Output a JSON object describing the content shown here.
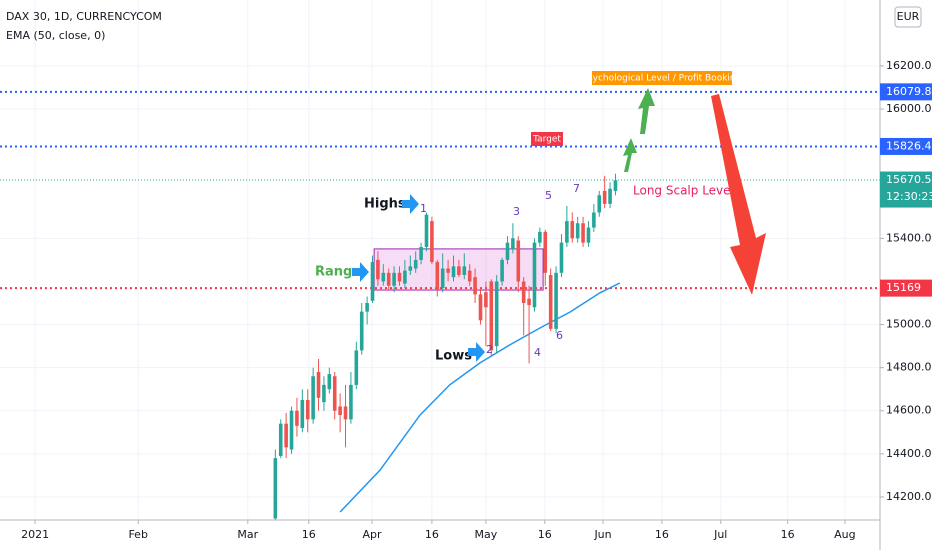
{
  "chart_data": {
    "type": "candlestick",
    "title": "DAX 30, 1D, CURRENCYCOM",
    "indicator": "EMA (50, close, 0)",
    "currency": "EUR",
    "countdown": "12:30:23",
    "ylim": [
      14093,
      16506
    ],
    "yticks": [
      {
        "value": 14200,
        "label": "14200.0"
      },
      {
        "value": 14400,
        "label": "14400.0"
      },
      {
        "value": 14600,
        "label": "14600.0"
      },
      {
        "value": 14800,
        "label": "14800.0"
      },
      {
        "value": 15000,
        "label": "15000.0"
      },
      {
        "value": 15400,
        "label": "15400.0"
      },
      {
        "value": 16000,
        "label": "16000.0"
      },
      {
        "value": 16200,
        "label": "16200.0"
      }
    ],
    "xlim": [
      0,
      163
    ],
    "xticks": [
      {
        "value": 6.5,
        "label": "2021"
      },
      {
        "value": 25.6,
        "label": "Feb"
      },
      {
        "value": 45.9,
        "label": "Mar"
      },
      {
        "value": 57.2,
        "label": "16"
      },
      {
        "value": 68.9,
        "label": "Apr"
      },
      {
        "value": 80,
        "label": "16"
      },
      {
        "value": 90,
        "label": "May"
      },
      {
        "value": 100.9,
        "label": "16"
      },
      {
        "value": 111.7,
        "label": "Jun"
      },
      {
        "value": 122.6,
        "label": "16"
      },
      {
        "value": 133.5,
        "label": "Jul"
      },
      {
        "value": 145.9,
        "label": "16"
      },
      {
        "value": 156.5,
        "label": "Aug"
      }
    ],
    "up_color": "#26a69a",
    "down_color": "#ef5350",
    "candles": {
      "x": [
        51,
        52,
        53,
        54,
        55,
        56,
        57,
        58,
        59,
        60,
        61,
        62,
        63,
        64,
        65,
        66,
        67,
        68,
        69,
        70,
        71,
        72,
        73,
        74,
        75,
        76,
        77,
        78,
        79,
        80,
        81,
        82,
        83,
        84,
        85,
        86,
        87,
        88,
        89,
        90,
        91,
        92,
        93,
        94,
        95,
        96,
        97,
        98,
        99,
        100,
        101,
        102,
        103,
        104,
        105,
        106,
        107,
        108,
        109,
        110,
        111,
        112,
        113,
        114
      ],
      "open": [
        14100,
        14390,
        14540,
        14420,
        14600,
        14520,
        14650,
        14560,
        14780,
        14640,
        14700,
        14760,
        14620,
        14620,
        14560,
        14720,
        14880,
        15060,
        15110,
        15300,
        15200,
        15240,
        15180,
        15240,
        15190,
        15250,
        15260,
        15300,
        15360,
        15480,
        15290,
        15170,
        15260,
        15220,
        15270,
        15230,
        15250,
        15220,
        15140,
        15150,
        15200,
        14900,
        15200,
        15300,
        15350,
        15390,
        15200,
        15120,
        15080,
        15380,
        15430,
        15230,
        14980,
        15240,
        15380,
        15480,
        15400,
        15470,
        15380,
        15450,
        15520,
        15620,
        15560,
        15620
      ],
      "high": [
        14420,
        14560,
        14590,
        14620,
        14660,
        14700,
        14700,
        14800,
        14840,
        14760,
        14800,
        14780,
        14680,
        14720,
        14780,
        14920,
        15100,
        15130,
        15320,
        15340,
        15280,
        15260,
        15270,
        15270,
        15300,
        15320,
        15340,
        15380,
        15520,
        15500,
        15300,
        15330,
        15300,
        15320,
        15300,
        15330,
        15280,
        15260,
        15170,
        15200,
        15210,
        15230,
        15310,
        15410,
        15470,
        15410,
        15220,
        15180,
        15400,
        15450,
        15440,
        15260,
        15270,
        15420,
        15550,
        15520,
        15500,
        15500,
        15480,
        15560,
        15620,
        15690,
        15660,
        15700
      ],
      "low": [
        14090,
        14380,
        14380,
        14400,
        14480,
        14500,
        14500,
        14540,
        14600,
        14600,
        14680,
        14560,
        14500,
        14430,
        14540,
        14700,
        14860,
        15000,
        15100,
        15180,
        15180,
        15160,
        15150,
        15180,
        15170,
        15230,
        15240,
        15280,
        15340,
        15280,
        15130,
        15150,
        15200,
        15200,
        15220,
        15210,
        15180,
        15100,
        15000,
        14900,
        14850,
        14870,
        15180,
        15280,
        15330,
        15150,
        14950,
        14820,
        15060,
        15360,
        15180,
        14970,
        14960,
        15220,
        15360,
        15380,
        15380,
        15360,
        15360,
        15430,
        15500,
        15540,
        15540,
        15600
      ],
      "close": [
        14380,
        14540,
        14430,
        14600,
        14530,
        14650,
        14560,
        14760,
        14660,
        14720,
        14770,
        14600,
        14580,
        14560,
        14720,
        14880,
        15060,
        15100,
        15290,
        15210,
        15240,
        15180,
        15240,
        15200,
        15250,
        15270,
        15300,
        15360,
        15510,
        15290,
        15160,
        15260,
        15240,
        15270,
        15230,
        15270,
        15200,
        15140,
        15020,
        15080,
        14880,
        15200,
        15300,
        15380,
        15400,
        15200,
        15100,
        15090,
        15380,
        15430,
        15240,
        14980,
        15240,
        15380,
        15480,
        15400,
        15470,
        15380,
        15450,
        15520,
        15600,
        15560,
        15630,
        15670
      ]
    },
    "ema": {
      "color": "#2196f3",
      "x": [
        63,
        70.4,
        77.8,
        83.3,
        88.9,
        94.4,
        100,
        105.6,
        111.1,
        114.8
      ],
      "values": [
        14130,
        14325,
        14580,
        14720,
        14822,
        14905,
        14984,
        15058,
        15147,
        15193
      ]
    },
    "levels": [
      {
        "value": 16079.8,
        "color": "#2962ff"
      },
      {
        "value": 15826.4,
        "color": "#2962ff"
      },
      {
        "value": 15670.5,
        "color": "#26a69a"
      },
      {
        "value": 15169.0,
        "color": "#f23645"
      }
    ],
    "range_box": {
      "x": [
        69.3,
        100.6
      ],
      "y": [
        15160,
        15351
      ]
    },
    "annotations": {
      "highs": "Highs",
      "range": "Range",
      "lows": "Lows",
      "n1": "1",
      "n2": "2",
      "n3": "3",
      "n4": "4",
      "n5": "5",
      "n6": "6",
      "n7": "7",
      "long_scalp": "Long Scalp Levels",
      "target": "Target",
      "psych": "Psychological Level / Profit Booking"
    }
  }
}
